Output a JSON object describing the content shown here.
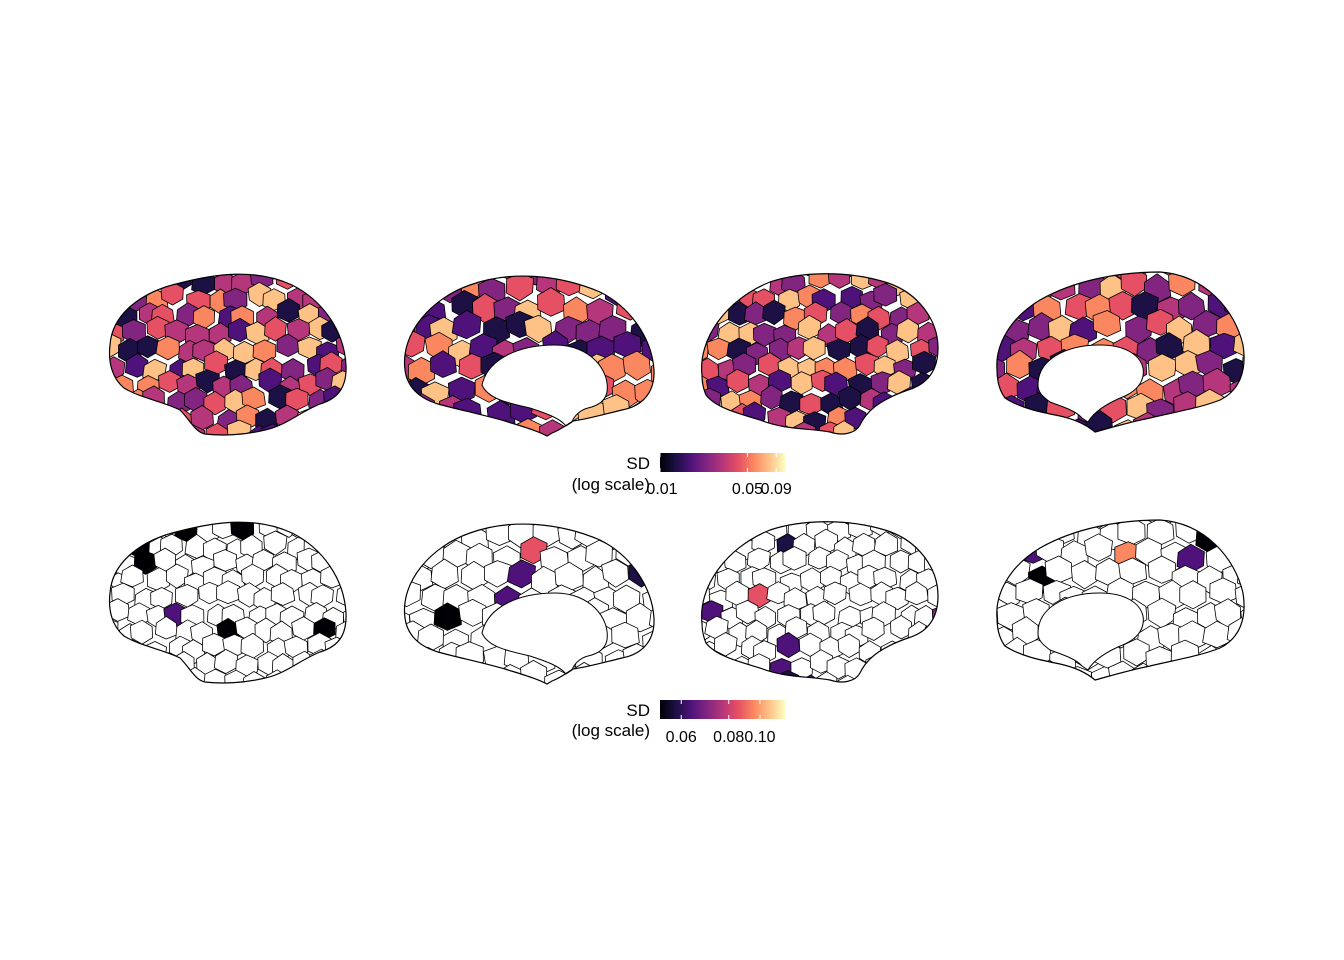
{
  "colors": {
    "magma": [
      "#000004",
      "#1c1044",
      "#4f127b",
      "#812581",
      "#b5367a",
      "#e55064",
      "#fb8761",
      "#fec287",
      "#fcfdbf"
    ],
    "outline": "#000000",
    "background": "#ffffff",
    "unfilled": "#ffffff"
  },
  "rows": [
    {
      "id": "row-1",
      "fill_mode": "all-parcels",
      "views": [
        "lateral-left",
        "medial-left",
        "lateral-right",
        "medial-right"
      ],
      "legend": {
        "title_line1": "SD",
        "title_line2": "(log scale)",
        "ticks": [
          {
            "label": "0.01",
            "fraction": 0.0
          },
          {
            "label": "0.05",
            "fraction": 0.7
          },
          {
            "label": "0.09",
            "fraction": 0.93
          }
        ]
      }
    },
    {
      "id": "row-2",
      "fill_mode": "sparse-parcels",
      "views": [
        "lateral-left",
        "medial-left",
        "lateral-right",
        "medial-right"
      ],
      "legend": {
        "title_line1": "SD",
        "title_line2": "(log scale)",
        "ticks": [
          {
            "label": "0.06",
            "fraction": 0.17
          },
          {
            "label": "0.08",
            "fraction": 0.55
          },
          {
            "label": "0.10",
            "fraction": 0.8
          }
        ]
      }
    }
  ]
}
